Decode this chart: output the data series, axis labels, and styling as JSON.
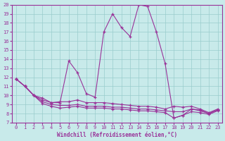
{
  "xlabel": "Windchill (Refroidissement éolien,°C)",
  "xlim": [
    -0.5,
    23.5
  ],
  "ylim": [
    7,
    20
  ],
  "xticks": [
    0,
    1,
    2,
    3,
    4,
    5,
    6,
    7,
    8,
    9,
    10,
    11,
    12,
    13,
    14,
    15,
    16,
    17,
    18,
    19,
    20,
    21,
    22,
    23
  ],
  "yticks": [
    7,
    8,
    9,
    10,
    11,
    12,
    13,
    14,
    15,
    16,
    17,
    18,
    19,
    20
  ],
  "bg_color": "#c8eaea",
  "line_color": "#993399",
  "grid_color": "#99cccc",
  "lines": [
    [
      11.8,
      11.0,
      10.0,
      9.5,
      9.2,
      9.2,
      13.8,
      12.5,
      10.2,
      9.8,
      17.0,
      19.0,
      17.5,
      16.5,
      20.0,
      19.8,
      17.0,
      13.5,
      7.5,
      7.8,
      8.5,
      8.4,
      8.0,
      8.4
    ],
    [
      11.8,
      11.0,
      10.0,
      9.7,
      9.2,
      9.3,
      9.3,
      9.5,
      9.2,
      9.2,
      9.2,
      9.1,
      9.0,
      8.9,
      8.8,
      8.8,
      8.7,
      8.5,
      8.8,
      8.7,
      8.8,
      8.5,
      8.1,
      8.5
    ],
    [
      11.8,
      11.0,
      10.0,
      9.3,
      9.0,
      8.9,
      8.9,
      9.0,
      8.8,
      8.8,
      8.8,
      8.7,
      8.7,
      8.6,
      8.5,
      8.5,
      8.4,
      8.3,
      8.2,
      8.2,
      8.5,
      8.3,
      8.0,
      8.4
    ],
    [
      11.8,
      11.0,
      10.0,
      9.1,
      8.8,
      8.6,
      8.7,
      8.8,
      8.6,
      8.6,
      8.6,
      8.5,
      8.5,
      8.4,
      8.3,
      8.3,
      8.2,
      8.1,
      7.5,
      7.8,
      8.2,
      8.1,
      7.9,
      8.3
    ]
  ]
}
